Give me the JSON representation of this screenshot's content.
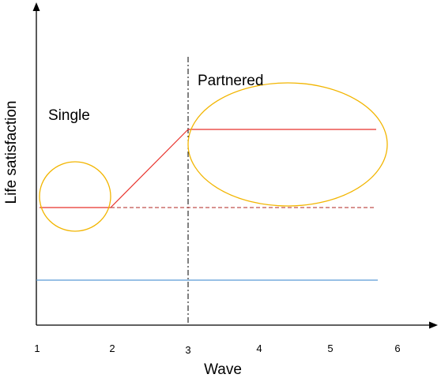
{
  "axes": {
    "y_label": "Life satisfaction",
    "x_label": "Wave",
    "x_ticks": [
      "1",
      "2",
      "3",
      "4",
      "5",
      "6"
    ]
  },
  "annotations": {
    "left_region": "Single",
    "right_region": "Partnered"
  },
  "colors": {
    "axis": "#000000",
    "trajectory": "#e8312a",
    "baseline": "#5b9bd5",
    "highlight": "#f2b500",
    "divider": "#000000"
  }
}
